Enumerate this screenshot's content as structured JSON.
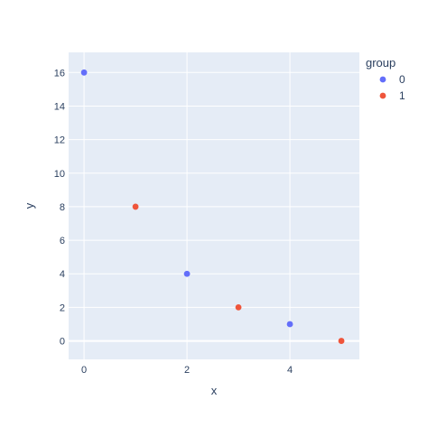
{
  "chart_data": {
    "type": "scatter",
    "xlabel": "x",
    "ylabel": "y",
    "xlim": [
      -0.3,
      5.35
    ],
    "ylim": [
      -1.1,
      17.2
    ],
    "x_ticks": [
      0,
      2,
      4
    ],
    "y_ticks": [
      0,
      2,
      4,
      6,
      8,
      10,
      12,
      14,
      16
    ],
    "grid": true,
    "legend": {
      "title": "group",
      "placement": "top-right"
    },
    "series": [
      {
        "name": "0",
        "color": "#636efa",
        "x": [
          0,
          2,
          4
        ],
        "y": [
          16,
          4,
          1
        ]
      },
      {
        "name": "1",
        "color": "#EF553B",
        "x": [
          1,
          3,
          5
        ],
        "y": [
          8,
          2,
          0
        ]
      }
    ]
  }
}
